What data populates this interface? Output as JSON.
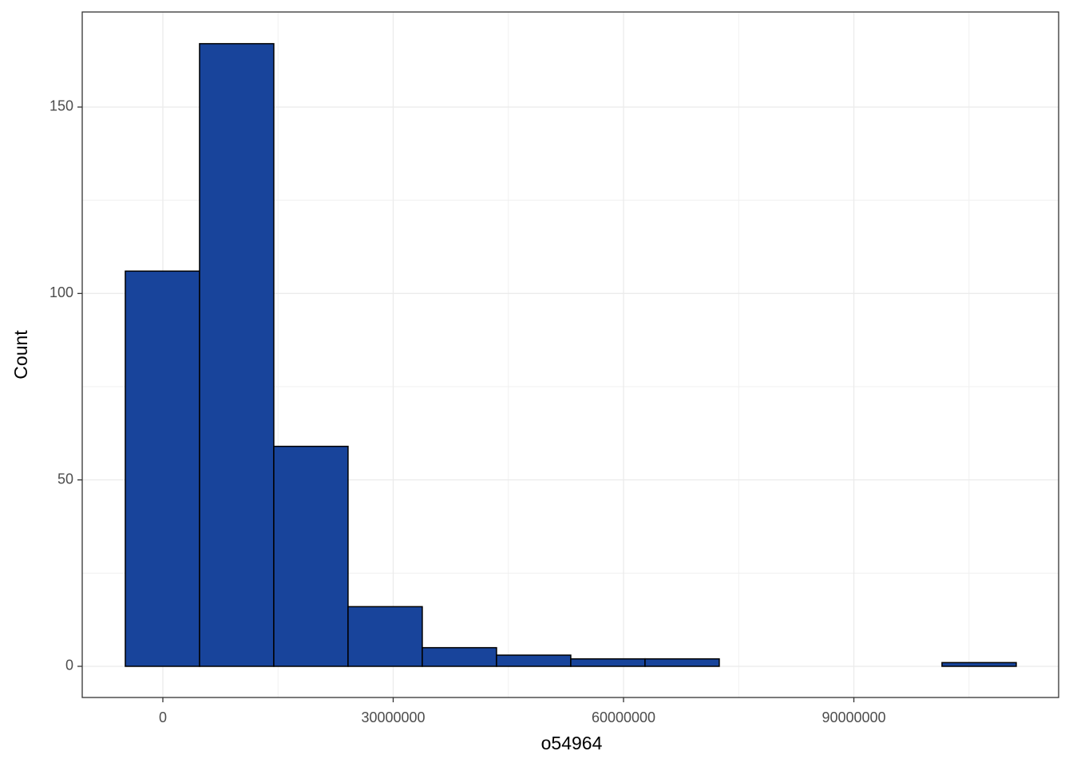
{
  "chart_data": {
    "type": "histogram",
    "x_label": "o54964",
    "y_label": "Count",
    "bins": [
      -4890000,
      4780000,
      14450000,
      24120000,
      33790000,
      43460000,
      53130000,
      62800000,
      72470000,
      82140000,
      91810000,
      101480000,
      111150000
    ],
    "values": [
      106,
      167,
      59,
      16,
      5,
      3,
      2,
      2,
      0,
      0,
      0,
      1
    ],
    "color": "#18449b",
    "xlim": [
      -10500000,
      116670000
    ],
    "ylim": [
      -8.36,
      175.5
    ],
    "xticks": [
      0,
      30000000,
      60000000,
      90000000
    ],
    "yticks": [
      0,
      50,
      100,
      150
    ],
    "minor_xticks": [
      15000000,
      45000000,
      75000000,
      105000000
    ],
    "minor_yticks": [
      25,
      75,
      125
    ],
    "grid": true
  }
}
